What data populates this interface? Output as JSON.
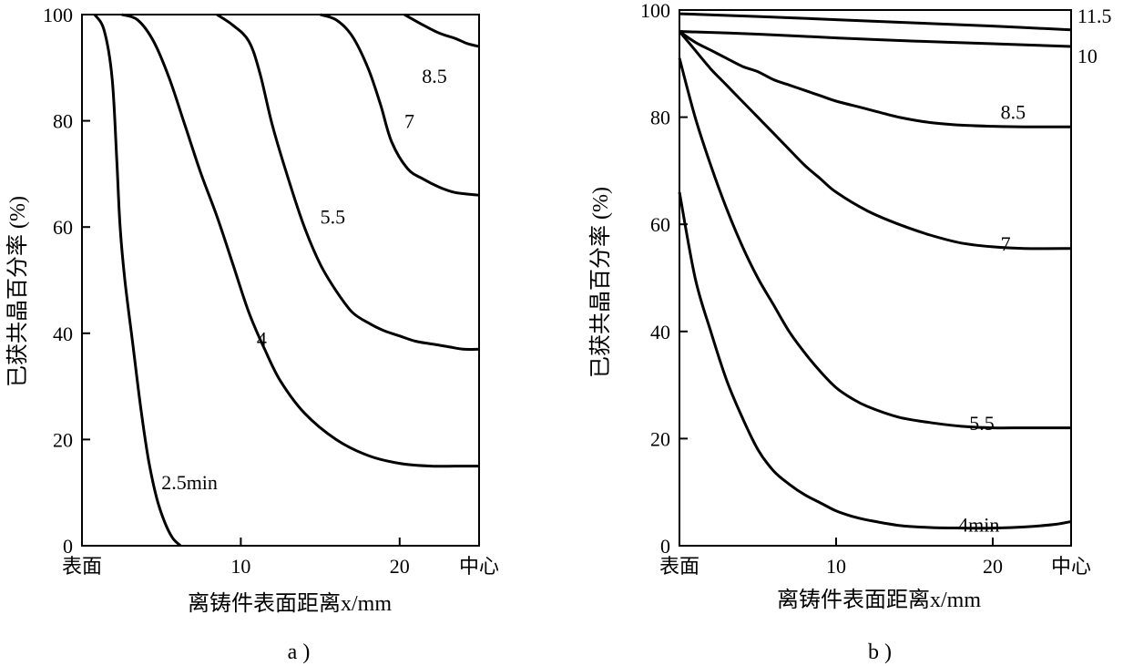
{
  "chart_data": [
    {
      "type": "line",
      "panel_label": "a )",
      "xlabel": "离铸件表面距离x/mm",
      "ylabel": "已获共晶百分率 (%)",
      "xlim": [
        0,
        25
      ],
      "ylim": [
        0,
        100
      ],
      "x_ticks": [
        {
          "x": 0,
          "label": "表面"
        },
        {
          "x": 10,
          "label": "10"
        },
        {
          "x": 20,
          "label": "20"
        },
        {
          "x": 25,
          "label": "中心"
        }
      ],
      "y_ticks": [
        0,
        20,
        40,
        60,
        80,
        100
      ],
      "series": [
        {
          "name": "2.5min",
          "label_at": [
            5.0,
            12
          ],
          "x": [
            0.8,
            1.4,
            1.9,
            2.2,
            2.4,
            2.7,
            3.2,
            3.7,
            4.2,
            4.7,
            5.2,
            5.7,
            6.2
          ],
          "y": [
            100,
            97,
            88,
            72,
            60,
            50,
            38,
            26,
            16,
            9,
            4.5,
            1.5,
            0
          ]
        },
        {
          "name": "4",
          "label_at": [
            11.0,
            39
          ],
          "x": [
            2.5,
            3.5,
            4.5,
            5.5,
            6.5,
            7.5,
            8.5,
            9.5,
            10.5,
            11.5,
            12.5,
            14,
            16,
            18,
            20,
            22,
            24,
            25
          ],
          "y": [
            100,
            99,
            95,
            88,
            79,
            70,
            62,
            53,
            44,
            37,
            31,
            25,
            20,
            17,
            15.5,
            15,
            15,
            15
          ]
        },
        {
          "name": "5.5",
          "label_at": [
            15.0,
            62
          ],
          "x": [
            8.5,
            9.5,
            10.5,
            11.2,
            12,
            13,
            14,
            15,
            16,
            17,
            18,
            19,
            20,
            21,
            22,
            23,
            24,
            25
          ],
          "y": [
            100,
            98,
            95,
            89,
            79,
            69,
            60,
            53,
            48,
            44,
            42,
            40.5,
            39.5,
            38.5,
            38,
            37.5,
            37,
            37
          ]
        },
        {
          "name": "7",
          "label_at": [
            20.3,
            80
          ],
          "x": [
            15,
            16,
            17,
            18,
            18.8,
            19.5,
            20.5,
            21.5,
            22.5,
            23.5,
            25
          ],
          "y": [
            100,
            99,
            96,
            90,
            83,
            76,
            71,
            69,
            67.5,
            66.5,
            66
          ]
        },
        {
          "name": "8.5",
          "label_at": [
            21.4,
            88.5
          ],
          "x": [
            20.3,
            21.5,
            22.5,
            23.5,
            24.3,
            25
          ],
          "y": [
            100,
            98,
            96.5,
            95.5,
            94.5,
            94
          ]
        }
      ]
    },
    {
      "type": "line",
      "panel_label": "b )",
      "xlabel": "离铸件表面距离x/mm",
      "ylabel": "已获共晶百分率 (%)",
      "xlim": [
        0,
        25
      ],
      "ylim": [
        0,
        100
      ],
      "x_ticks": [
        {
          "x": 0,
          "label": "表面"
        },
        {
          "x": 10,
          "label": "10"
        },
        {
          "x": 20,
          "label": "20"
        },
        {
          "x": 25,
          "label": "中心"
        }
      ],
      "y_ticks": [
        0,
        20,
        40,
        60,
        80,
        100
      ],
      "series": [
        {
          "name": "11.5",
          "label_at": [
            25.4,
            99
          ],
          "x": [
            0,
            5,
            10,
            15,
            20,
            25
          ],
          "y": [
            99.3,
            98.8,
            98.2,
            97.6,
            97.0,
            96.3
          ]
        },
        {
          "name": "10",
          "label_at": [
            25.4,
            91.5
          ],
          "x": [
            0,
            5,
            10,
            15,
            20,
            25
          ],
          "y": [
            96.0,
            95.5,
            94.8,
            94.2,
            93.7,
            93.2
          ]
        },
        {
          "name": "8.5",
          "label_at": [
            20.5,
            81
          ],
          "x": [
            0,
            1,
            2,
            3,
            4,
            5,
            6,
            7,
            8,
            9,
            10,
            12,
            14,
            16,
            18,
            20,
            22,
            25
          ],
          "y": [
            96,
            94,
            92.5,
            91,
            89.5,
            88.5,
            87,
            86,
            85,
            84,
            83,
            81.5,
            80,
            79,
            78.5,
            78.3,
            78.2,
            78.2
          ]
        },
        {
          "name": "7",
          "label_at": [
            20.5,
            56.5
          ],
          "x": [
            0,
            1,
            2,
            3,
            4,
            5,
            6,
            7,
            8,
            9,
            10,
            12,
            14,
            16,
            18,
            20,
            22,
            25
          ],
          "y": [
            96,
            92.5,
            89,
            86,
            83,
            80,
            77,
            74,
            71,
            68.5,
            66,
            62.5,
            60,
            58,
            56.5,
            55.8,
            55.5,
            55.5
          ]
        },
        {
          "name": "5.5",
          "label_at": [
            18.5,
            23
          ],
          "x": [
            0,
            1,
            2,
            3,
            4,
            5,
            6,
            7,
            8,
            9,
            10,
            11,
            12,
            14,
            16,
            18,
            20,
            22,
            25
          ],
          "y": [
            91,
            80,
            71,
            63,
            56,
            50,
            45,
            40,
            36,
            32.5,
            29.5,
            27.5,
            26,
            24,
            23,
            22.3,
            22,
            22,
            22
          ]
        },
        {
          "name": "4min",
          "label_at": [
            17.8,
            4
          ],
          "x": [
            0,
            1,
            2,
            3,
            4,
            5,
            6,
            7,
            8,
            9,
            10,
            11,
            12,
            14,
            16,
            18,
            20,
            22,
            24,
            25
          ],
          "y": [
            66,
            50,
            40,
            31,
            24,
            18,
            14,
            11.5,
            9.5,
            8,
            6.5,
            5.5,
            4.8,
            3.8,
            3.4,
            3.3,
            3.3,
            3.5,
            4,
            4.5
          ]
        }
      ]
    }
  ]
}
